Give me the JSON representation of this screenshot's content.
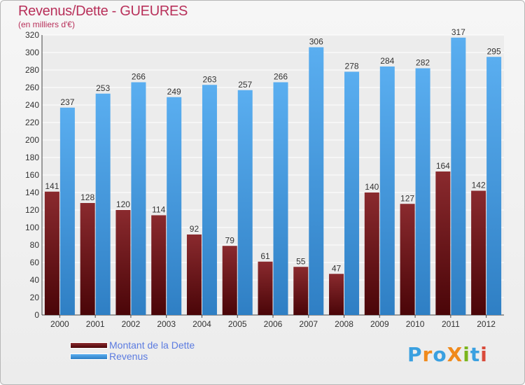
{
  "header": {
    "title": "Revenus/Dette - GUEURES",
    "subtitle": "(en milliers d'€)"
  },
  "logo": {
    "text": "ProXiti",
    "letters": [
      {
        "ch": "P",
        "color": "#3aa0e0"
      },
      {
        "ch": "r",
        "color": "#f08a1c"
      },
      {
        "ch": "o",
        "color": "#3aa0e0"
      },
      {
        "ch": "X",
        "color": "#f08a1c"
      },
      {
        "ch": "i",
        "color": "#7ab51d"
      },
      {
        "ch": "t",
        "color": "#3aa0e0"
      },
      {
        "ch": "i",
        "color": "#d94a3a"
      }
    ]
  },
  "chart_data": {
    "type": "bar",
    "title": "Revenus/Dette - GUEURES",
    "subtitle": "(en milliers d'€)",
    "categories": [
      "2000",
      "2001",
      "2002",
      "2003",
      "2004",
      "2005",
      "2006",
      "2007",
      "2008",
      "2009",
      "2010",
      "2011",
      "2012"
    ],
    "series": [
      {
        "name": "Montant de la Dette",
        "color": "#6b1216",
        "values": [
          141,
          128,
          120,
          114,
          92,
          79,
          61,
          55,
          47,
          140,
          127,
          164,
          142
        ]
      },
      {
        "name": "Revenus",
        "color": "#4a9fe6",
        "values": [
          237,
          253,
          266,
          249,
          263,
          257,
          266,
          306,
          278,
          284,
          282,
          317,
          295
        ]
      }
    ],
    "ylim": [
      0,
      320
    ],
    "yticks": [
      0,
      20,
      40,
      60,
      80,
      100,
      120,
      140,
      160,
      180,
      200,
      220,
      240,
      260,
      280,
      300,
      320
    ],
    "grid": true,
    "legend_position": "bottom-left"
  }
}
